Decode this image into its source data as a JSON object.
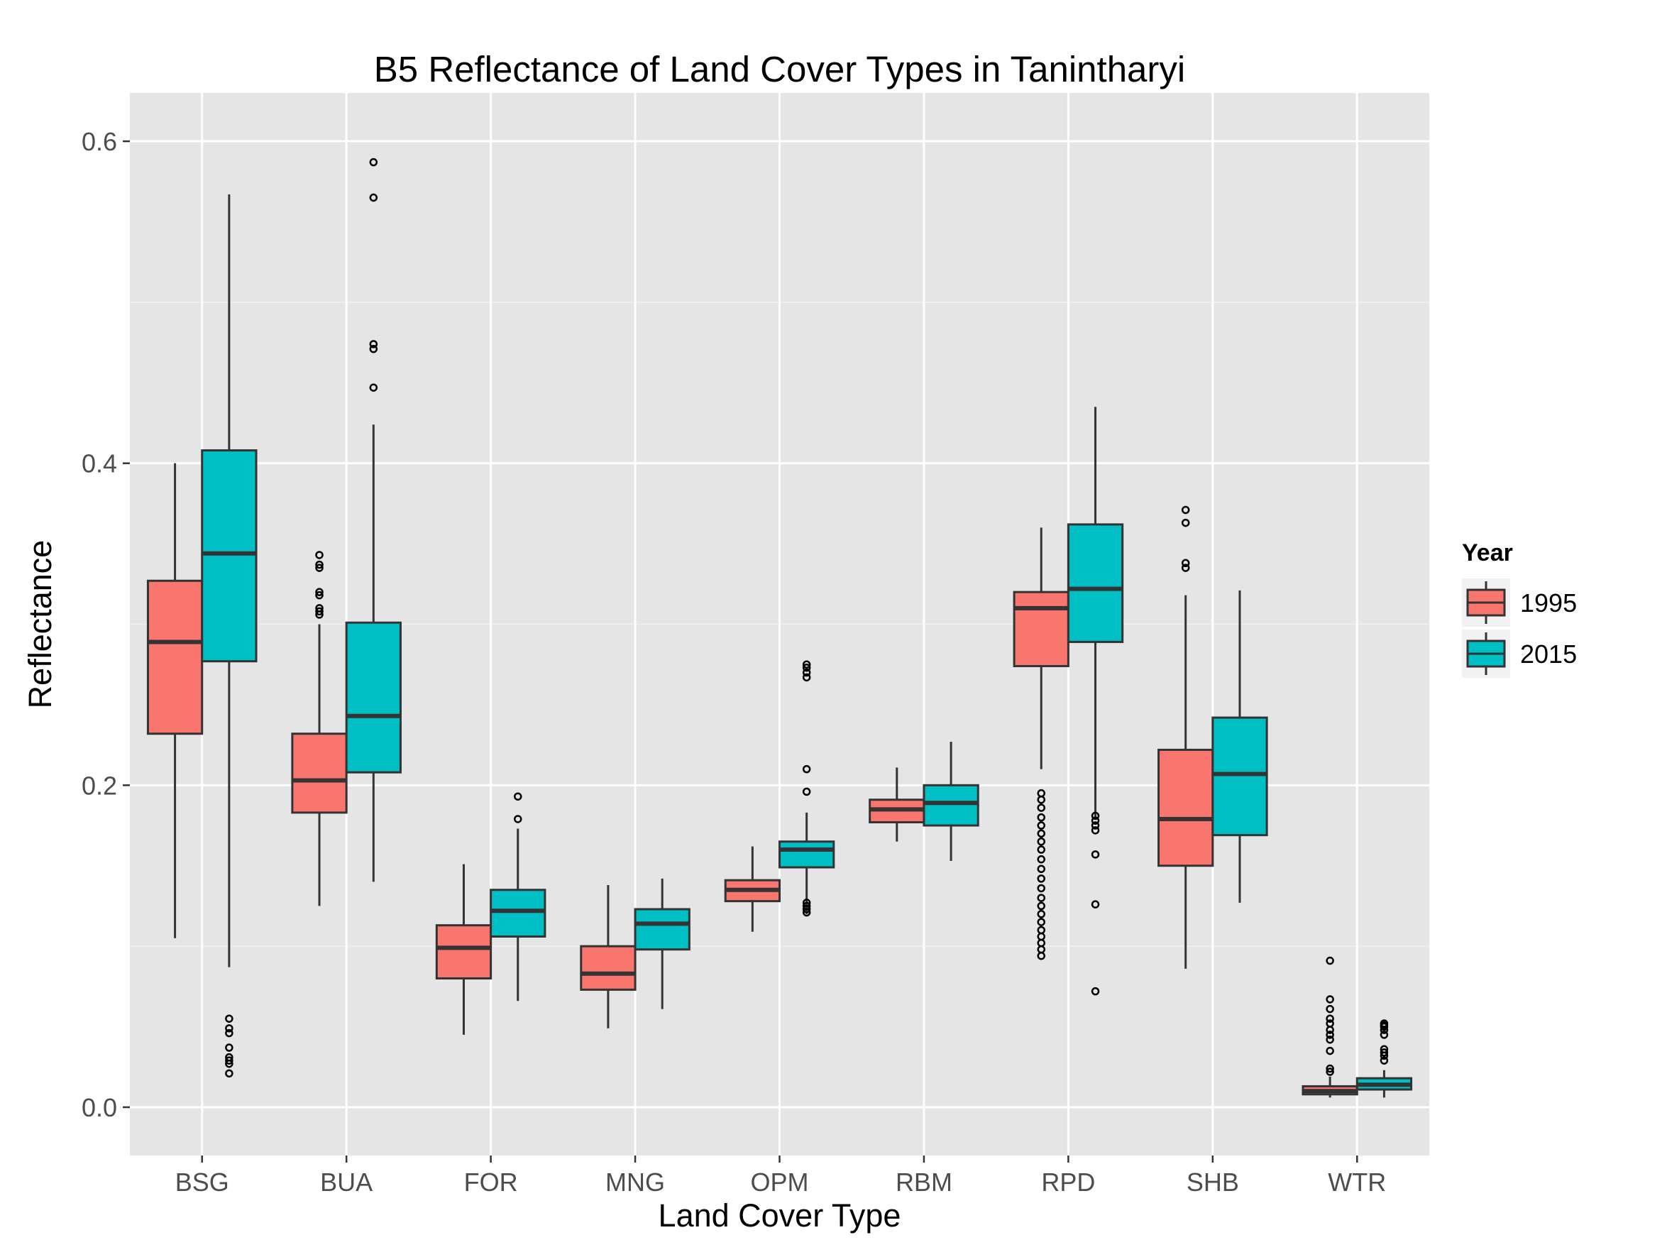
{
  "chart_data": {
    "type": "box",
    "title": "B5 Reflectance of Land Cover Types in Tanintharyi",
    "xlabel": "Land Cover Type",
    "ylabel": "Reflectance",
    "ylim": [
      -0.03,
      0.63
    ],
    "yticks": [
      0.0,
      0.2,
      0.4,
      0.6
    ],
    "ytick_labels": [
      "0.0",
      "0.2",
      "0.4",
      "0.6"
    ],
    "grid": true,
    "legend": {
      "title": "Year",
      "position": "right"
    },
    "categories": [
      "BSG",
      "BUA",
      "FOR",
      "MNG",
      "OPM",
      "RBM",
      "RPD",
      "SHB",
      "WTR"
    ],
    "series": [
      {
        "name": "1995",
        "color": "#F8766D",
        "boxes": [
          {
            "min": 0.105,
            "q1": 0.232,
            "median": 0.289,
            "q3": 0.327,
            "max": 0.4,
            "outliers": []
          },
          {
            "min": 0.125,
            "q1": 0.183,
            "median": 0.203,
            "q3": 0.232,
            "max": 0.3,
            "outliers": [
              0.306,
              0.308,
              0.31,
              0.318,
              0.32,
              0.335,
              0.337,
              0.343
            ]
          },
          {
            "min": 0.045,
            "q1": 0.08,
            "median": 0.099,
            "q3": 0.113,
            "max": 0.151,
            "outliers": []
          },
          {
            "min": 0.049,
            "q1": 0.073,
            "median": 0.083,
            "q3": 0.1,
            "max": 0.138,
            "outliers": []
          },
          {
            "min": 0.109,
            "q1": 0.128,
            "median": 0.135,
            "q3": 0.141,
            "max": 0.162,
            "outliers": []
          },
          {
            "min": 0.165,
            "q1": 0.177,
            "median": 0.185,
            "q3": 0.191,
            "max": 0.211,
            "outliers": []
          },
          {
            "min": 0.21,
            "q1": 0.274,
            "median": 0.31,
            "q3": 0.32,
            "max": 0.36,
            "outliers": [
              0.094,
              0.098,
              0.102,
              0.106,
              0.11,
              0.115,
              0.12,
              0.125,
              0.13,
              0.136,
              0.142,
              0.148,
              0.154,
              0.16,
              0.165,
              0.17,
              0.175,
              0.18,
              0.186,
              0.191,
              0.195
            ]
          },
          {
            "min": 0.086,
            "q1": 0.15,
            "median": 0.179,
            "q3": 0.222,
            "max": 0.318,
            "outliers": [
              0.335,
              0.338,
              0.363,
              0.371
            ]
          },
          {
            "min": 0.006,
            "q1": 0.008,
            "median": 0.01,
            "q3": 0.013,
            "max": 0.019,
            "outliers": [
              0.022,
              0.024,
              0.035,
              0.042,
              0.045,
              0.048,
              0.052,
              0.055,
              0.061,
              0.067,
              0.091
            ]
          }
        ]
      },
      {
        "name": "2015",
        "color": "#00BFC4",
        "boxes": [
          {
            "min": 0.087,
            "q1": 0.277,
            "median": 0.344,
            "q3": 0.408,
            "max": 0.567,
            "outliers": [
              0.021,
              0.027,
              0.029,
              0.031,
              0.037,
              0.046,
              0.049,
              0.055
            ]
          },
          {
            "min": 0.14,
            "q1": 0.208,
            "median": 0.243,
            "q3": 0.301,
            "max": 0.424,
            "outliers": [
              0.447,
              0.471,
              0.474,
              0.565,
              0.587
            ]
          },
          {
            "min": 0.066,
            "q1": 0.106,
            "median": 0.122,
            "q3": 0.135,
            "max": 0.173,
            "outliers": [
              0.179,
              0.193
            ]
          },
          {
            "min": 0.061,
            "q1": 0.098,
            "median": 0.114,
            "q3": 0.123,
            "max": 0.142,
            "outliers": []
          },
          {
            "min": 0.12,
            "q1": 0.149,
            "median": 0.16,
            "q3": 0.165,
            "max": 0.183,
            "outliers": [
              0.121,
              0.123,
              0.125,
              0.127,
              0.196,
              0.21,
              0.267,
              0.27,
              0.273,
              0.275
            ]
          },
          {
            "min": 0.153,
            "q1": 0.175,
            "median": 0.189,
            "q3": 0.2,
            "max": 0.227,
            "outliers": []
          },
          {
            "min": 0.18,
            "q1": 0.289,
            "median": 0.322,
            "q3": 0.362,
            "max": 0.435,
            "outliers": [
              0.072,
              0.126,
              0.157,
              0.172,
              0.175,
              0.178,
              0.181
            ]
          },
          {
            "min": 0.127,
            "q1": 0.169,
            "median": 0.207,
            "q3": 0.242,
            "max": 0.321,
            "outliers": []
          },
          {
            "min": 0.006,
            "q1": 0.011,
            "median": 0.014,
            "q3": 0.018,
            "max": 0.023,
            "outliers": [
              0.029,
              0.032,
              0.034,
              0.036,
              0.045,
              0.048,
              0.05,
              0.051,
              0.052
            ]
          }
        ]
      }
    ]
  }
}
